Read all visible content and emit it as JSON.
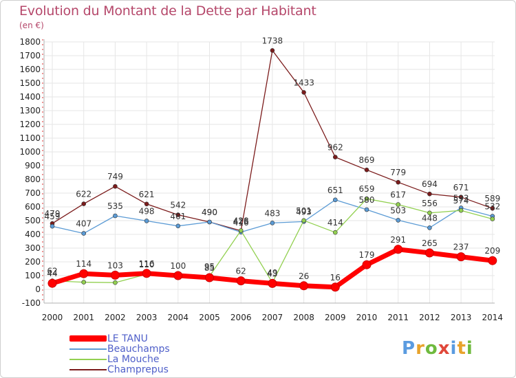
{
  "title": "Evolution du Montant de la Dette par Habitant",
  "unit": "(en €)",
  "logo": {
    "text": "Proxiti",
    "letter_colors": [
      "#5a9be0",
      "#e8a32c",
      "#6fba3e",
      "#e0483a",
      "#5a9be0",
      "#e8a32c",
      "#6fba3e"
    ]
  },
  "colors": {
    "title": "#b5476a",
    "legend_text": "#4f5fc9",
    "grid": "#e6e6e6"
  },
  "chart_data": {
    "type": "line",
    "xlabel": "",
    "ylabel": "",
    "x": [
      "2000",
      "2001",
      "2002",
      "2003",
      "2004",
      "2005",
      "2006",
      "2007",
      "2008",
      "2009",
      "2010",
      "2011",
      "2012",
      "2013",
      "2014"
    ],
    "ylim": [
      -100,
      1800
    ],
    "yticks": [
      -100,
      0,
      100,
      200,
      300,
      400,
      500,
      600,
      700,
      800,
      900,
      1000,
      1100,
      1200,
      1300,
      1400,
      1500,
      1600,
      1700,
      1800
    ],
    "grid": true,
    "legend_position": "bottom-left",
    "series": [
      {
        "name": "LE TANU",
        "color": "#ff0000",
        "values": [
          44,
          114,
          103,
          116,
          100,
          85,
          62,
          43,
          26,
          16,
          179,
          291,
          265,
          237,
          209
        ],
        "labels": [
          "44",
          "114",
          "103",
          "116",
          "100",
          "85",
          "62",
          "43",
          "26",
          "16",
          "179",
          "291",
          "265",
          "237",
          "209"
        ]
      },
      {
        "name": "Beauchamps",
        "color": "#5b9bd5",
        "values": [
          459,
          407,
          535,
          498,
          461,
          490,
          416,
          483,
          493,
          651,
          580,
          503,
          448,
          593,
          532
        ],
        "labels": [
          "459",
          "407",
          "535",
          "498",
          "461",
          "490",
          "416",
          "483",
          "493",
          "651",
          "580",
          "503",
          "448",
          "593",
          "532"
        ]
      },
      {
        "name": "La Mouche",
        "color": "#92d050",
        "values": [
          62,
          52,
          49,
          110,
          98,
          95,
          428,
          49,
          501,
          414,
          659,
          617,
          556,
          574,
          512
        ],
        "labels": [
          "62",
          "",
          "",
          "110",
          "",
          "95",
          "428",
          "49",
          "501",
          "414",
          "659",
          "617",
          "556",
          "574",
          ""
        ]
      },
      {
        "name": "Champrepus",
        "color": "#7b1b1b",
        "values": [
          479,
          622,
          749,
          621,
          542,
          490,
          426,
          1738,
          1433,
          962,
          869,
          779,
          694,
          671,
          589
        ],
        "labels": [
          "479",
          "622",
          "749",
          "621",
          "542",
          "490",
          "426",
          "1738",
          "1433",
          "962",
          "869",
          "779",
          "694",
          "671",
          "589"
        ]
      }
    ]
  }
}
